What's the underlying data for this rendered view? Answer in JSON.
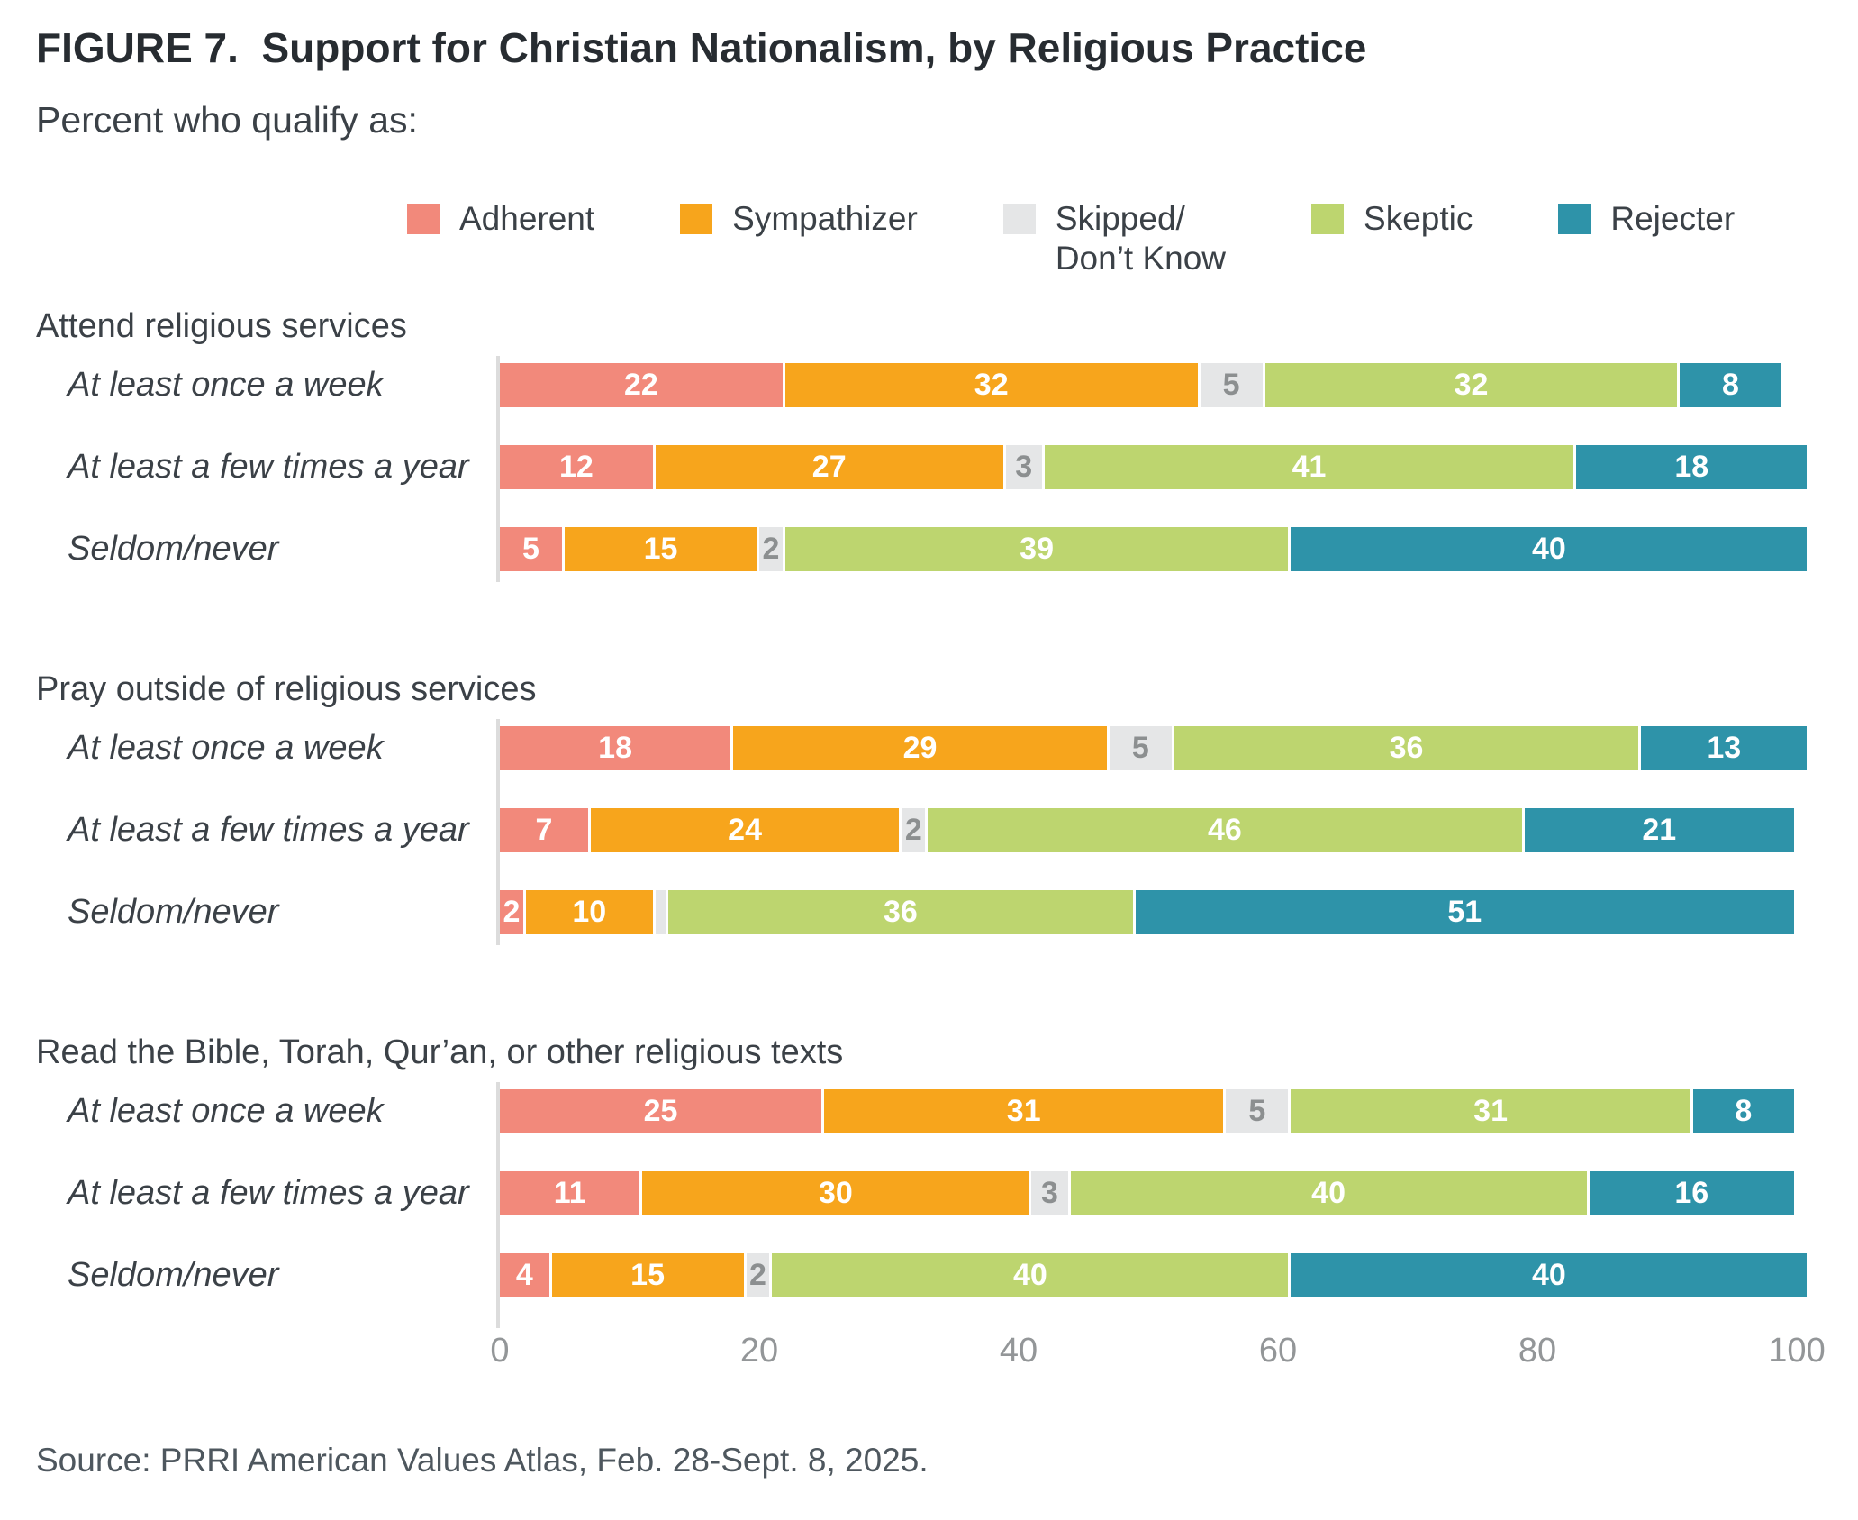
{
  "title": "FIGURE 7.  Support for Christian Nationalism, by Religious Practice",
  "subtitle": "Percent who qualify as:",
  "source": "Source: PRRI American Values Atlas, Feb. 28-Sept. 8, 2025.",
  "chart_data": {
    "type": "bar",
    "stacked": true,
    "orientation": "horizontal",
    "xlim": [
      0,
      100
    ],
    "x_ticks": [
      0,
      20,
      40,
      60,
      80,
      100
    ],
    "grid": false,
    "legend_position": "top",
    "series": [
      {
        "name": "Adherent",
        "legend_label": "Adherent",
        "color": "#F2897B",
        "label_color": "#FFFFFF"
      },
      {
        "name": "Sympathizer",
        "legend_label": "Sympathizer",
        "color": "#F7A51C",
        "label_color": "#FFFFFF"
      },
      {
        "name": "Skipped/Don’t Know",
        "legend_label": "Skipped/\nDon’t Know",
        "color": "#E5E6E7",
        "label_color": "#8C8F90"
      },
      {
        "name": "Skeptic",
        "legend_label": "Skeptic",
        "color": "#BDD56F",
        "label_color": "#FFFFFF"
      },
      {
        "name": "Rejecter",
        "legend_label": "Rejecter",
        "color": "#2E93A9",
        "label_color": "#FFFFFF"
      }
    ],
    "groups": [
      {
        "title": "Attend religious services",
        "rows": [
          {
            "label": "At least once a week",
            "values": [
              22,
              32,
              5,
              32,
              8
            ]
          },
          {
            "label": "At least a few times a year",
            "values": [
              12,
              27,
              3,
              41,
              18
            ]
          },
          {
            "label": "Seldom/never",
            "values": [
              5,
              15,
              2,
              39,
              40
            ]
          }
        ]
      },
      {
        "title": "Pray outside of religious services",
        "rows": [
          {
            "label": "At least once a week",
            "values": [
              18,
              29,
              5,
              36,
              13
            ]
          },
          {
            "label": "At least a few times a year",
            "values": [
              7,
              24,
              2,
              46,
              21
            ]
          },
          {
            "label": "Seldom/never",
            "values": [
              2,
              10,
              1,
              36,
              51
            ],
            "hidden_value_labels": [
              2
            ]
          }
        ]
      },
      {
        "title": "Read the Bible, Torah, Qur’an, or other religious texts",
        "rows": [
          {
            "label": "At least once a week",
            "values": [
              25,
              31,
              5,
              31,
              8
            ]
          },
          {
            "label": "At least a few times a year",
            "values": [
              11,
              30,
              3,
              40,
              16
            ]
          },
          {
            "label": "Seldom/never",
            "values": [
              4,
              15,
              2,
              40,
              40
            ]
          }
        ]
      }
    ]
  }
}
